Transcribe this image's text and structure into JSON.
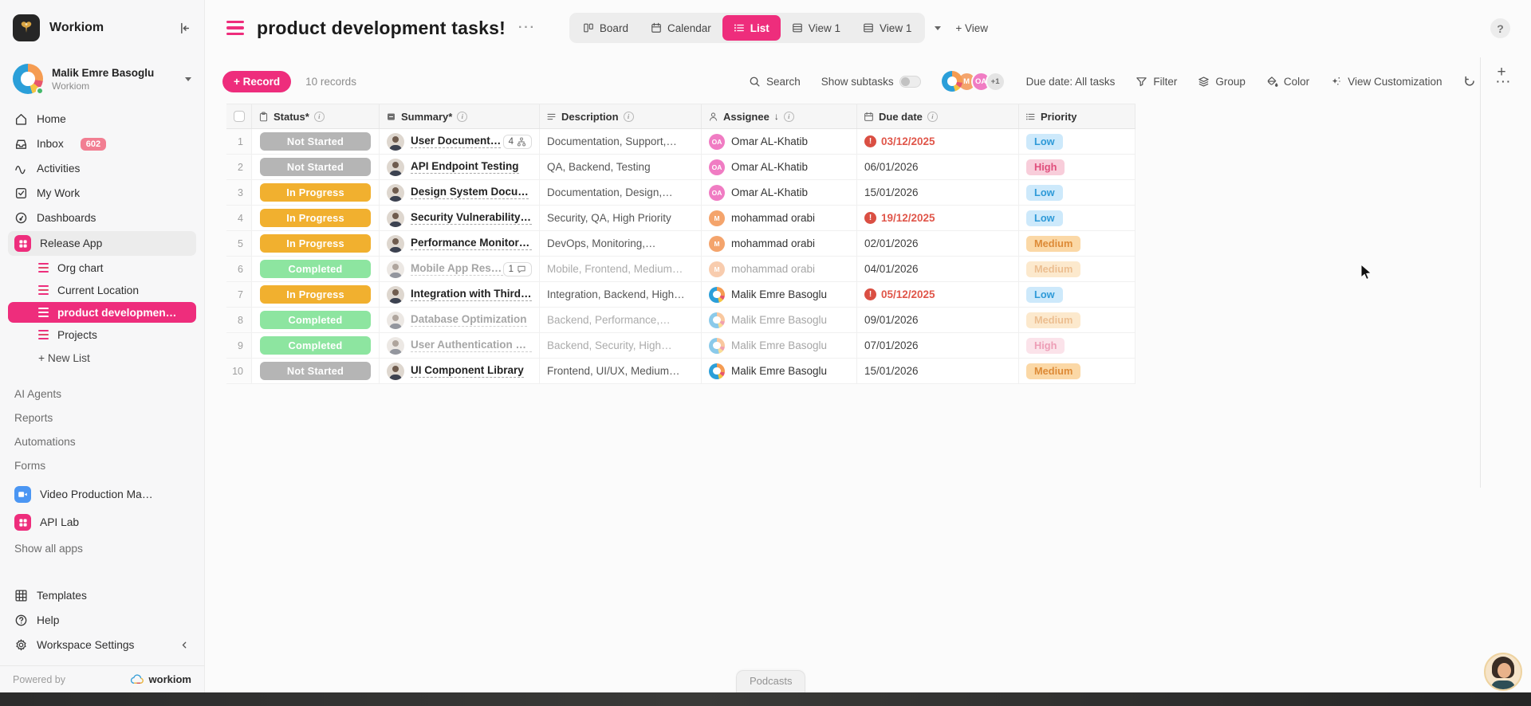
{
  "colors": {
    "accent": "#ee2d7c",
    "status": {
      "not_started": "#b5b5b5",
      "in_progress": "#f1b02f",
      "completed": "#8de5a0"
    },
    "priority": {
      "Low": {
        "bg": "#cde9fb",
        "fg": "#2e9ad8"
      },
      "High": {
        "bg": "#f8cdda",
        "fg": "#e04e7c"
      },
      "Medium": {
        "bg": "#fbd8a6",
        "fg": "#dd8a36"
      }
    },
    "overdue": "#e0564a"
  },
  "sidebar": {
    "brand": "Workiom",
    "user": {
      "name": "Malik Emre Basoglu",
      "workspace": "Workiom"
    },
    "nav": {
      "home": "Home",
      "inbox": "Inbox",
      "inbox_badge": "602",
      "activities": "Activities",
      "my_work": "My Work",
      "dashboards": "Dashboards",
      "release_app": "Release App"
    },
    "lists": [
      {
        "label": "Org chart",
        "active": false
      },
      {
        "label": "Current Location",
        "active": false
      },
      {
        "label": "product developmen…",
        "active": true
      },
      {
        "label": "Projects",
        "active": false
      }
    ],
    "new_list": "+ New List",
    "tools": [
      "AI Agents",
      "Reports",
      "Automations",
      "Forms"
    ],
    "apps": [
      {
        "label": "Video Production Ma…",
        "icon": "video-app-icon"
      },
      {
        "label": "API Lab",
        "icon": "grid-app-icon"
      }
    ],
    "show_all_apps": "Show all apps",
    "footer": {
      "templates": "Templates",
      "help": "Help",
      "workspace_settings": "Workspace Settings",
      "powered_by": "Powered by",
      "brand": "workiom"
    }
  },
  "header": {
    "title": "product development tasks!",
    "tabs": [
      {
        "label": "Board",
        "icon": "board-icon",
        "active": false
      },
      {
        "label": "Calendar",
        "icon": "calendar-icon",
        "active": false
      },
      {
        "label": "List",
        "icon": "list-icon",
        "active": true
      },
      {
        "label": "View 1",
        "icon": "table-icon",
        "active": false
      },
      {
        "label": "View 1",
        "icon": "table-icon",
        "active": false
      }
    ],
    "add_view": "+ View"
  },
  "toolbar": {
    "record_button": "+ Record",
    "records_count": "10 records",
    "search": "Search",
    "show_subtasks": "Show subtasks",
    "avatars": [
      {
        "type": "donut"
      },
      {
        "type": "initials",
        "text": "M"
      },
      {
        "type": "initials",
        "text": "OA"
      },
      {
        "type": "more",
        "text": "+1"
      }
    ],
    "due_filter": "Due date: All tasks",
    "filter": "Filter",
    "group": "Group",
    "color": "Color",
    "view_customization": "View Customization"
  },
  "table": {
    "columns": [
      {
        "label": "Status*"
      },
      {
        "label": "Summary*"
      },
      {
        "label": "Description"
      },
      {
        "label": "Assignee"
      },
      {
        "label": "Due date"
      },
      {
        "label": "Priority"
      }
    ],
    "rows": [
      {
        "n": "1",
        "status": "Not Started",
        "status_key": "not_started",
        "summary": "User Document…",
        "badge": {
          "text": "4",
          "icon": "subtask-icon"
        },
        "description": "Documentation, Support,…",
        "assignee": {
          "name": "Omar AL-Khatib",
          "avatar_key": "oa",
          "initials": "OA"
        },
        "due": "03/12/2025",
        "overdue": true,
        "priority": "Low",
        "done": false
      },
      {
        "n": "2",
        "status": "Not Started",
        "status_key": "not_started",
        "summary": "API Endpoint Testing",
        "description": "QA, Backend, Testing",
        "assignee": {
          "name": "Omar AL-Khatib",
          "avatar_key": "oa",
          "initials": "OA"
        },
        "due": "06/01/2026",
        "overdue": false,
        "priority": "High",
        "done": false
      },
      {
        "n": "3",
        "status": "In Progress",
        "status_key": "in_progress",
        "summary": "Design System Docu…",
        "description": "Documentation, Design,…",
        "assignee": {
          "name": "Omar AL-Khatib",
          "avatar_key": "oa",
          "initials": "OA"
        },
        "due": "15/01/2026",
        "overdue": false,
        "priority": "Low",
        "done": false
      },
      {
        "n": "4",
        "status": "In Progress",
        "status_key": "in_progress",
        "summary": "Security Vulnerability …",
        "description": "Security, QA, High Priority",
        "assignee": {
          "name": "mohammad orabi",
          "avatar_key": "m",
          "initials": "M"
        },
        "due": "19/12/2025",
        "overdue": true,
        "priority": "Low",
        "done": false
      },
      {
        "n": "5",
        "status": "In Progress",
        "status_key": "in_progress",
        "summary": "Performance Monitori…",
        "description": "DevOps, Monitoring,…",
        "assignee": {
          "name": "mohammad orabi",
          "avatar_key": "m",
          "initials": "M"
        },
        "due": "02/01/2026",
        "overdue": false,
        "priority": "Medium",
        "done": false
      },
      {
        "n": "6",
        "status": "Completed",
        "status_key": "completed",
        "summary": "Mobile App Resp…",
        "badge": {
          "text": "1",
          "icon": "comment-icon"
        },
        "description": "Mobile, Frontend, Medium…",
        "assignee": {
          "name": "mohammad orabi",
          "avatar_key": "m",
          "initials": "M"
        },
        "due": "04/01/2026",
        "overdue": false,
        "priority": "Medium",
        "done": true
      },
      {
        "n": "7",
        "status": "In Progress",
        "status_key": "in_progress",
        "summary": "Integration with Third…",
        "description": "Integration, Backend, High…",
        "assignee": {
          "name": "Malik Emre Basoglu",
          "avatar_key": "donut",
          "initials": ""
        },
        "due": "05/12/2025",
        "overdue": true,
        "priority": "Low",
        "done": false
      },
      {
        "n": "8",
        "status": "Completed",
        "status_key": "completed",
        "summary": "Database Optimization",
        "description": "Backend, Performance,…",
        "assignee": {
          "name": "Malik Emre Basoglu",
          "avatar_key": "donut",
          "initials": ""
        },
        "due": "09/01/2026",
        "overdue": false,
        "priority": "Medium",
        "done": true
      },
      {
        "n": "9",
        "status": "Completed",
        "status_key": "completed",
        "summary": "User Authentication M…",
        "description": "Backend, Security, High…",
        "assignee": {
          "name": "Malik Emre Basoglu",
          "avatar_key": "donut",
          "initials": ""
        },
        "due": "07/01/2026",
        "overdue": false,
        "priority": "High",
        "done": true
      },
      {
        "n": "10",
        "status": "Not Started",
        "status_key": "not_started",
        "summary": "UI Component Library",
        "description": "Frontend, UI/UX, Medium…",
        "assignee": {
          "name": "Malik Emre Basoglu",
          "avatar_key": "donut",
          "initials": ""
        },
        "due": "15/01/2026",
        "overdue": false,
        "priority": "Medium",
        "done": false
      }
    ]
  },
  "footer": {
    "podcasts_tab": "Podcasts"
  }
}
